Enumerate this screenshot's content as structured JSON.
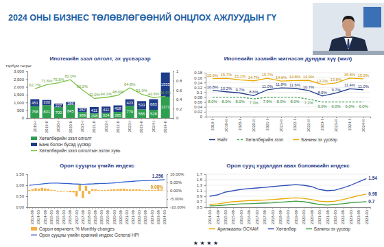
{
  "page": {
    "title": "2024 ОНЫ БИЗНЕС ТӨЛӨВЛӨГӨӨНИЙ ОНЦЛОХ АЖЛУУДЫН ГҮ",
    "footer": "★ ★ ★ ★"
  },
  "chart_data": [
    {
      "type": "bar",
      "title": "Ипотекийн зээл олголт, эх үүсвэрээр",
      "y_label": "тэрбум төгрөг",
      "categories": [
        "2019-I",
        "2019-II",
        "2020-I",
        "2020-II",
        "2021-I",
        "2021-II",
        "2022-I",
        "2022-II",
        "2023-I",
        "2023-II",
        "2024-I",
        "2024-II"
      ],
      "stacked": true,
      "data_labels": true,
      "grid": false,
      "legend": "bottom",
      "ylim": [
        0,
        3000
      ],
      "yticks": [
        0,
        500,
        {
          "value": 1000,
          "label": "1,000"
        },
        {
          "value": 1500,
          "label": "1,500"
        },
        {
          "value": 2000,
          "label": "2,000"
        },
        {
          "value": 2500,
          "label": "2,500"
        },
        {
          "value": 3000,
          "label": "3,000"
        }
      ],
      "y2lim": [
        0,
        1
      ],
      "y2ticks": [
        0,
        0.2,
        0.4,
        0.6,
        0.8,
        1
      ],
      "series": [
        {
          "name": "Хөтөлбөрийн зээл олголт",
          "type": "bar",
          "color": "#2e9e4f",
          "values": [
            758,
            831,
            700,
            845,
            389,
            298,
            324,
            395,
            779,
            555,
            528,
            1371
          ]
        },
        {
          "name": "Банк болон бусад үүсвэр",
          "type": "bar",
          "color": "#1f3c88",
          "values": [
            451,
            330,
            227,
            186,
            257,
            411,
            411,
            418,
            423,
            533,
            683,
            1555
          ]
        },
        {
          "name": "Хөтөлбөрийн зээл олголтын эзлэх хувь",
          "type": "line",
          "axis": "y2",
          "color": "#7cc242",
          "values": [
            0.627,
            0.716,
            0.755,
            0.82,
            0.602,
            0.42,
            0.441,
            0.486,
            0.648,
            0.51,
            0.436,
            0.469
          ],
          "value_labels": [
            "62.7%",
            "71.6%",
            "75.5%",
            "82.0%",
            "60.2%",
            "42.0%",
            "44.1%",
            "48.6%",
            "64.8%",
            "51.0%",
            "43.6%",
            "46.9%"
          ]
        }
      ]
    },
    {
      "type": "line",
      "title": "Ипотекийн зээлийн жигнэсэн дундаж хүү (жил)",
      "categories": [
        "2019-I",
        "2019-II",
        "2020-I",
        "2020-II",
        "2021-I",
        "2021-II",
        "2022-I",
        "2022-II",
        "2023-I",
        "2023-II",
        "2024-I",
        "2024-II"
      ],
      "data_labels": true,
      "grid": true,
      "legend": "bottom",
      "ylim": [
        0,
        0.18
      ],
      "yticks": [
        0,
        0.02,
        0.04,
        0.06,
        0.08,
        0.1,
        0.12,
        0.14,
        0.16,
        0.18
      ],
      "series": [
        {
          "name": "Нийт",
          "color": "#1f3c88",
          "line_style": "solid",
          "values": [
            0.108,
            0.102,
            0.097,
            0.086,
            0.11,
            0.118,
            0.116,
            0.107,
            0.085,
            0.097,
            0.114,
            0.11
          ],
          "value_labels": [
            "10.8%",
            "10.2%",
            "9.7%",
            "8.6%",
            "11.0%",
            "11.8%",
            "11.6%",
            "10.7%",
            "8.5%",
            "9.7%",
            "11.4%",
            "11.0%"
          ]
        },
        {
          "name": "Хөтөлбөрийн зээл",
          "color": "#3fa34d",
          "line_style": "dashed",
          "values": [
            0.08,
            0.08,
            0.08,
            0.073,
            0.079,
            0.08,
            0.08,
            0.072,
            0.06,
            0.06,
            0.06,
            0.06
          ],
          "value_labels": [
            "8.0%",
            "8.0%",
            "8.0%",
            "7.3%",
            "7.9%",
            "8.0%",
            "8.0%",
            "7.2%",
            "6.0%",
            "6.0%",
            "6.0%",
            "6.0%"
          ]
        },
        {
          "name": "Банкны эх үүсвэр",
          "color": "#e8a900",
          "line_style": "solid",
          "values": [
            0.156,
            0.157,
            0.151,
            0.147,
            0.157,
            0.146,
            0.148,
            0.149,
            0.132,
            0.138,
            0.158,
            0.155
          ],
          "value_labels": [
            "15.6%",
            "15.7%",
            "15.1%",
            "14.7%",
            "15.7%",
            "14.6%",
            "14.8%",
            "14.9%",
            "13.2%",
            "13.8%",
            "15.8%",
            "15.5%"
          ]
        }
      ]
    },
    {
      "type": "bar",
      "title": "Орон сууцны үнийн индекс",
      "categories": [
        null,
        "2013-09",
        null,
        "2014-03",
        null,
        "2014-09",
        null,
        "2015-03",
        null,
        "2015-09",
        null,
        "2016-03",
        null,
        "2016-09",
        null,
        "2017-03",
        null,
        "2017-09",
        null,
        "2018-03",
        null,
        "2018-09",
        null,
        "2019-03",
        null,
        "2019-09",
        null,
        "2020-03",
        null,
        "2020-09",
        null,
        "2021-03",
        null,
        "2021-09",
        null,
        "2022-03",
        null,
        "2022-09",
        null,
        "2023-03",
        null,
        "2023-09",
        null,
        "2024-03"
      ],
      "stacked": false,
      "data_labels": false,
      "grid": false,
      "legend": "bottom",
      "ylim": [
        0,
        1.5
      ],
      "yticks": [
        {
          "value": 0,
          "label": "0.00"
        },
        {
          "value": 0.5,
          "label": "0.50"
        },
        {
          "value": 1,
          "label": "1.00"
        },
        {
          "value": 1.5,
          "label": "1.50"
        }
      ],
      "y2lim": [
        -10,
        10
      ],
      "y2ticks": [
        {
          "value": -10,
          "label": "-10.00%"
        },
        {
          "value": -5,
          "label": "-5.00%"
        },
        {
          "value": 0,
          "label": "0.00%"
        },
        {
          "value": 5,
          "label": "5.00%"
        },
        {
          "value": 10,
          "label": "10.00%"
        }
      ],
      "annotations": [
        {
          "text": "1.256",
          "x": "2024-03",
          "y": 1.256
        },
        {
          "text": "0.08%",
          "x": "2024-03",
          "y": 0.08,
          "axis": "y2"
        }
      ],
      "series": [
        {
          "name": "Сарын өөрчлөлт, % Monthly changes",
          "type": "bar",
          "axis": "y2",
          "color": "#f5b041",
          "values": [
            0.5,
            1.0,
            1.5,
            1.2,
            1.8,
            1.4,
            1.2,
            0.5,
            0.4,
            -0.5,
            -0.6,
            -0.4,
            -0.5,
            -0.9,
            -1.0,
            -3.5,
            4.0,
            -4.5,
            3.0,
            -2.0,
            1.0,
            0.9,
            0.5,
            0.4,
            0.5,
            0.6,
            0.8,
            0.9,
            1.0,
            1.2,
            1.3,
            0.9,
            0.8,
            0.9,
            0.8,
            0.9,
            0.4,
            0.4,
            0.5,
            0.4,
            0.4,
            0.8,
            0.8,
            0.08
          ]
        },
        {
          "name": "Орон сууцны үнийн ерөнхий индекс General HPI",
          "type": "line",
          "color": "#2f5fd0",
          "values": [
            1.0,
            1.01,
            1.025,
            1.04,
            1.06,
            1.075,
            1.09,
            1.095,
            1.1,
            1.095,
            1.09,
            1.085,
            1.08,
            1.07,
            1.06,
            1.055,
            1.05,
            1.045,
            1.05,
            1.055,
            1.06,
            1.07,
            1.075,
            1.08,
            1.085,
            1.09,
            1.1,
            1.11,
            1.12,
            1.135,
            1.15,
            1.16,
            1.17,
            1.18,
            1.19,
            1.2,
            1.205,
            1.21,
            1.215,
            1.22,
            1.225,
            1.235,
            1.245,
            1.256
          ]
        }
      ]
    },
    {
      "type": "line",
      "title": "Орон сууц худалдан авах боломжийн индекс",
      "categories": [
        "2014-03",
        "2014-09",
        "2015-03",
        "2015-09",
        "2016-03",
        "2016-09",
        "2017-03",
        "2017-09",
        "2018-03",
        "2018-09",
        "2019-03",
        "2019-09",
        "2020-03",
        "2020-09",
        "2021-03",
        "2021-09",
        "2022-03",
        "2022-09",
        "2023-03",
        "2023-09",
        "2024-03"
      ],
      "data_labels": false,
      "grid": true,
      "legend": "bottom",
      "ylim": [
        0.5,
        1.7
      ],
      "yticks": [
        0.5,
        0.7,
        0.9,
        1.1,
        1.3,
        1.5,
        1.7
      ],
      "annotations": [
        {
          "text": "1.54",
          "x": "2024-03",
          "y": 1.54
        },
        {
          "text": "0.98",
          "x": "2024-03",
          "y": 0.98
        },
        {
          "text": "0.7",
          "x": "2024-03",
          "y": 0.7
        }
      ],
      "series": [
        {
          "name": "Арилжааны ОСХАИ",
          "color": "#e8a900",
          "values": [
            0.6,
            0.62,
            0.66,
            0.7,
            0.72,
            0.74,
            0.75,
            0.76,
            0.78,
            0.8,
            0.82,
            0.84,
            0.82,
            0.78,
            0.72,
            0.7,
            0.72,
            0.78,
            0.85,
            0.92,
            0.98
          ]
        },
        {
          "name": "Хөтөлбөр",
          "color": "#2f4fb5",
          "values": [
            0.9,
            0.95,
            1.05,
            1.1,
            1.15,
            1.18,
            1.2,
            1.22,
            1.25,
            1.28,
            1.3,
            1.32,
            1.3,
            1.25,
            1.15,
            1.1,
            1.12,
            1.2,
            1.3,
            1.42,
            1.54
          ]
        },
        {
          "name": "Банкны эх үүсвэр",
          "color": "#43a047",
          "values": [
            0.55,
            0.56,
            0.58,
            0.6,
            0.62,
            0.63,
            0.64,
            0.65,
            0.66,
            0.68,
            0.7,
            0.72,
            0.7,
            0.65,
            0.6,
            0.58,
            0.6,
            0.63,
            0.66,
            0.68,
            0.7
          ]
        }
      ]
    }
  ]
}
